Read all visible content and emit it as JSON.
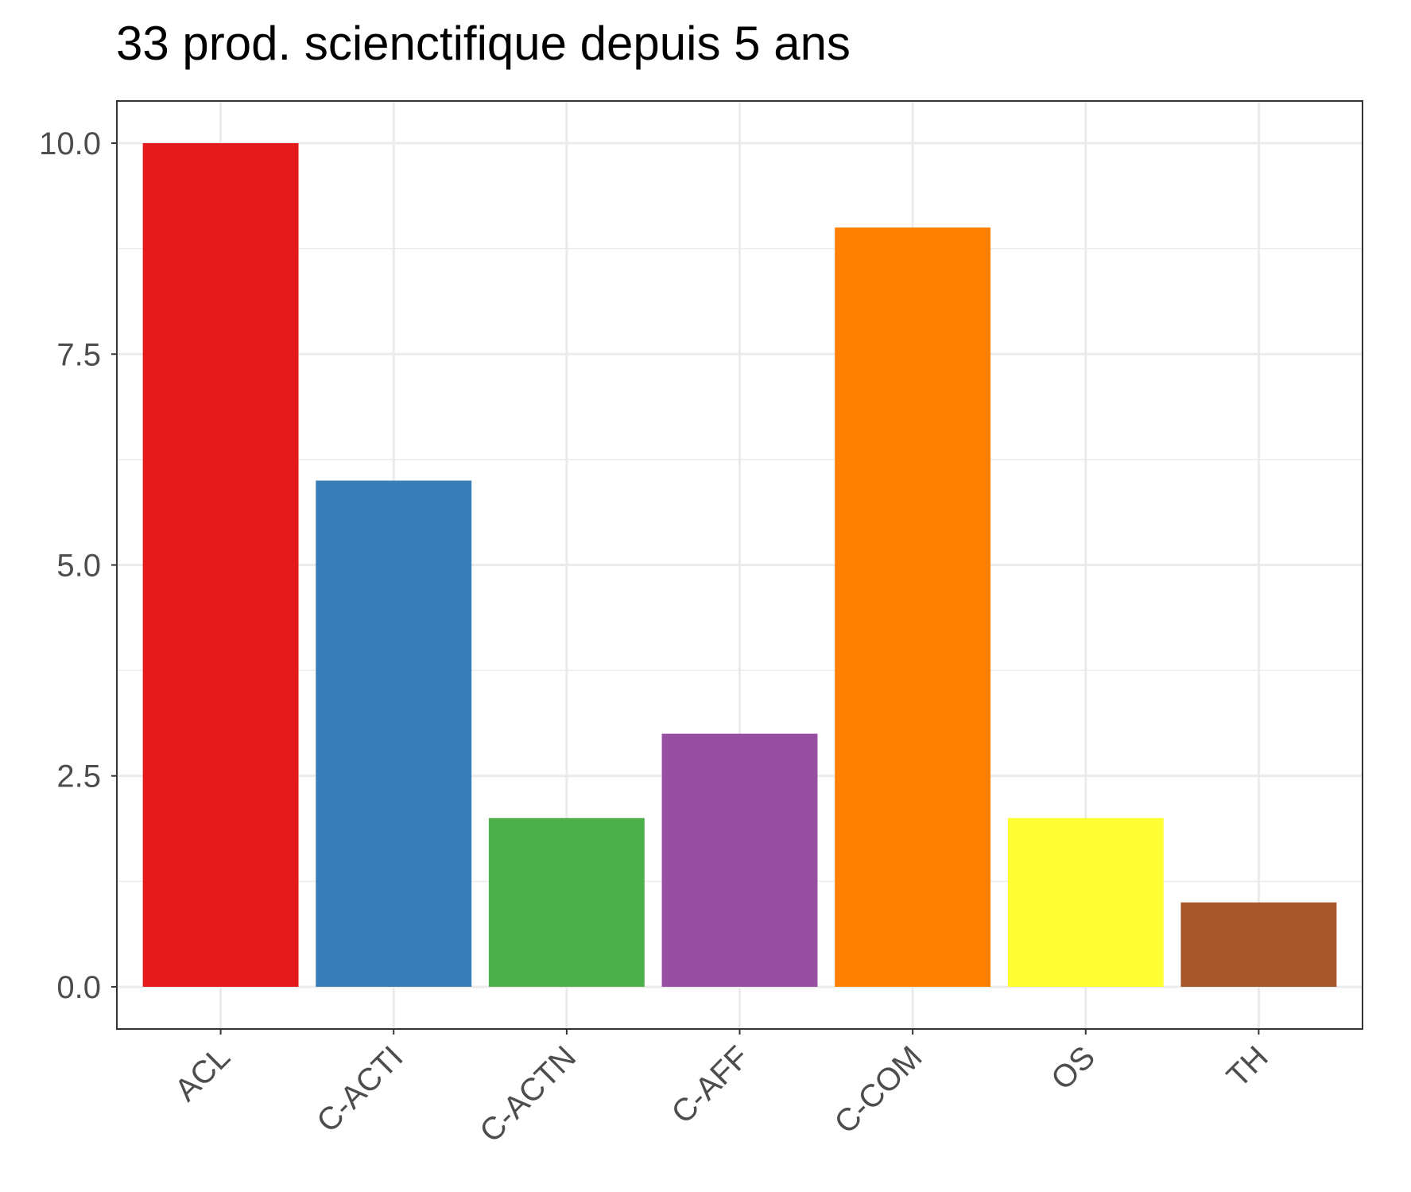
{
  "chart_data": {
    "type": "bar",
    "title": "33 prod. scienctifique depuis 5 ans",
    "xlabel": "",
    "ylabel": "",
    "categories": [
      "ACL",
      "C-ACTI",
      "C-ACTN",
      "C-AFF",
      "C-COM",
      "OS",
      "TH"
    ],
    "values": [
      10,
      6,
      2,
      3,
      9,
      2,
      1
    ],
    "colors": [
      "#e41a1c",
      "#377eb8",
      "#4daf4a",
      "#984ea3",
      "#ff7f00",
      "#ffff33",
      "#a65628"
    ],
    "ylim": [
      -0.5,
      10.5
    ],
    "yticks": [
      0,
      2.5,
      5,
      7.5,
      10
    ],
    "ytick_labels": [
      "0.0",
      "2.5",
      "5.0",
      "7.5",
      "10.0"
    ],
    "grid": true,
    "legend": "none",
    "panel_border_color": "#333333",
    "grid_color": "#ebebeb"
  }
}
